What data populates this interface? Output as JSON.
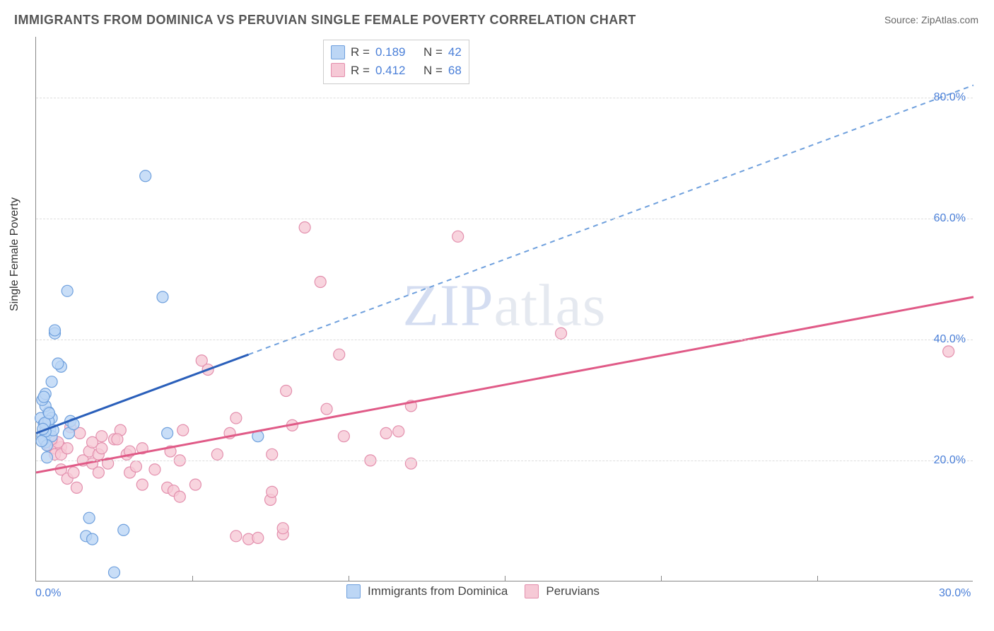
{
  "title": "IMMIGRANTS FROM DOMINICA VS PERUVIAN SINGLE FEMALE POVERTY CORRELATION CHART",
  "source_label": "Source:",
  "source_name": "ZipAtlas.com",
  "ylabel": "Single Female Poverty",
  "watermark_a": "ZIP",
  "watermark_b": "atlas",
  "chart": {
    "type": "scatter",
    "background_color": "#ffffff",
    "grid_color": "#dddddd",
    "axis_color": "#888888",
    "tick_label_color": "#4a7fd8",
    "tick_fontsize": 16,
    "title_fontsize": 18,
    "title_color": "#555555",
    "xlim": [
      0,
      30
    ],
    "ylim": [
      0,
      90
    ],
    "x_ticks_labeled": [
      {
        "v": 0,
        "label": "0.0%"
      },
      {
        "v": 30,
        "label": "30.0%"
      }
    ],
    "x_ticks_minor": [
      5,
      10,
      15,
      20,
      25
    ],
    "y_ticks": [
      {
        "v": 20,
        "label": "20.0%"
      },
      {
        "v": 40,
        "label": "40.0%"
      },
      {
        "v": 60,
        "label": "60.0%"
      },
      {
        "v": 80,
        "label": "80.0%"
      }
    ],
    "series": [
      {
        "key": "dominica",
        "label": "Immigrants from Dominica",
        "color_fill": "#bcd6f5",
        "color_stroke": "#6fa0dd",
        "marker_radius": 8,
        "marker_opacity": 0.8,
        "R": "0.189",
        "N": "42",
        "regression": {
          "solid_color": "#2a5fba",
          "dash_color": "#6fa0dd",
          "solid_width": 3,
          "dash_width": 2,
          "x0": 0,
          "y0": 24.5,
          "xs": 6.8,
          "ys": 37.5,
          "x1": 30,
          "y1": 82
        },
        "points": [
          [
            0.2,
            24
          ],
          [
            0.3,
            25
          ],
          [
            0.15,
            27
          ],
          [
            0.3,
            23
          ],
          [
            0.35,
            24.5
          ],
          [
            0.25,
            26
          ],
          [
            0.4,
            28
          ],
          [
            0.3,
            29
          ],
          [
            0.45,
            25
          ],
          [
            0.25,
            23.5
          ],
          [
            0.5,
            24
          ],
          [
            0.5,
            27
          ],
          [
            0.2,
            30
          ],
          [
            0.3,
            31
          ],
          [
            0.5,
            33
          ],
          [
            0.8,
            35.5
          ],
          [
            0.7,
            36
          ],
          [
            0.6,
            41
          ],
          [
            0.6,
            41.5
          ],
          [
            1.0,
            48
          ],
          [
            1.05,
            24.5
          ],
          [
            1.1,
            26.5
          ],
          [
            1.2,
            26
          ],
          [
            1.6,
            7.5
          ],
          [
            1.7,
            10.5
          ],
          [
            1.8,
            7
          ],
          [
            2.5,
            1.5
          ],
          [
            2.8,
            8.5
          ],
          [
            3.5,
            67
          ],
          [
            4.05,
            47
          ],
          [
            4.2,
            24.5
          ],
          [
            7.1,
            24
          ],
          [
            0.35,
            22.5
          ],
          [
            0.4,
            26.5
          ],
          [
            0.55,
            25
          ],
          [
            0.3,
            24.8
          ],
          [
            0.28,
            26.2
          ],
          [
            0.22,
            25.2
          ],
          [
            0.25,
            30.5
          ],
          [
            0.35,
            20.5
          ],
          [
            0.18,
            23.2
          ],
          [
            0.42,
            27.8
          ]
        ]
      },
      {
        "key": "peruvians",
        "label": "Peruvians",
        "color_fill": "#f6c9d6",
        "color_stroke": "#e38fad",
        "marker_radius": 8,
        "marker_opacity": 0.8,
        "R": "0.412",
        "N": "68",
        "regression": {
          "solid_color": "#e05a87",
          "dash_color": "#e05a87",
          "solid_width": 3,
          "dash_width": 0,
          "x0": 0,
          "y0": 18,
          "xs": 30,
          "ys": 47,
          "x1": 30,
          "y1": 47
        },
        "points": [
          [
            0.4,
            22.5
          ],
          [
            0.6,
            22
          ],
          [
            0.8,
            22.2
          ],
          [
            0.6,
            21
          ],
          [
            0.8,
            21
          ],
          [
            1.0,
            22
          ],
          [
            0.7,
            23
          ],
          [
            0.5,
            23.5
          ],
          [
            0.8,
            18.5
          ],
          [
            1.0,
            17
          ],
          [
            1.2,
            18
          ],
          [
            1.3,
            15.5
          ],
          [
            1.5,
            20
          ],
          [
            1.7,
            21.5
          ],
          [
            1.8,
            19.5
          ],
          [
            2.0,
            21
          ],
          [
            2.1,
            22
          ],
          [
            2.1,
            24
          ],
          [
            2.0,
            18
          ],
          [
            2.3,
            19.5
          ],
          [
            2.5,
            23.5
          ],
          [
            2.7,
            25
          ],
          [
            2.9,
            21
          ],
          [
            3.0,
            18
          ],
          [
            3.2,
            19
          ],
          [
            3.0,
            21.5
          ],
          [
            3.4,
            16
          ],
          [
            3.4,
            22
          ],
          [
            3.8,
            18.5
          ],
          [
            4.2,
            15.5
          ],
          [
            4.3,
            21.5
          ],
          [
            4.4,
            15
          ],
          [
            4.6,
            14
          ],
          [
            4.6,
            20
          ],
          [
            4.7,
            25
          ],
          [
            5.1,
            16
          ],
          [
            5.3,
            36.5
          ],
          [
            5.5,
            35
          ],
          [
            5.8,
            21
          ],
          [
            6.2,
            24.5
          ],
          [
            6.4,
            7.5
          ],
          [
            6.4,
            27
          ],
          [
            6.8,
            7
          ],
          [
            7.1,
            7.2
          ],
          [
            7.5,
            13.5
          ],
          [
            7.55,
            14.8
          ],
          [
            7.55,
            21
          ],
          [
            7.9,
            7.8
          ],
          [
            7.9,
            8.8
          ],
          [
            8.0,
            31.5
          ],
          [
            8.2,
            25.8
          ],
          [
            8.6,
            58.5
          ],
          [
            9.3,
            28.5
          ],
          [
            9.1,
            49.5
          ],
          [
            9.7,
            37.5
          ],
          [
            9.85,
            24
          ],
          [
            10.7,
            20
          ],
          [
            11.2,
            24.5
          ],
          [
            11.6,
            24.8
          ],
          [
            12.0,
            19.5
          ],
          [
            12.0,
            29
          ],
          [
            13.5,
            57
          ],
          [
            16.8,
            41
          ],
          [
            29.2,
            38
          ],
          [
            1.1,
            25.5
          ],
          [
            1.4,
            24.5
          ],
          [
            1.8,
            23
          ],
          [
            2.6,
            23.5
          ]
        ]
      }
    ],
    "top_legend_template": {
      "R_prefix": "R =",
      "N_prefix": "N ="
    }
  }
}
